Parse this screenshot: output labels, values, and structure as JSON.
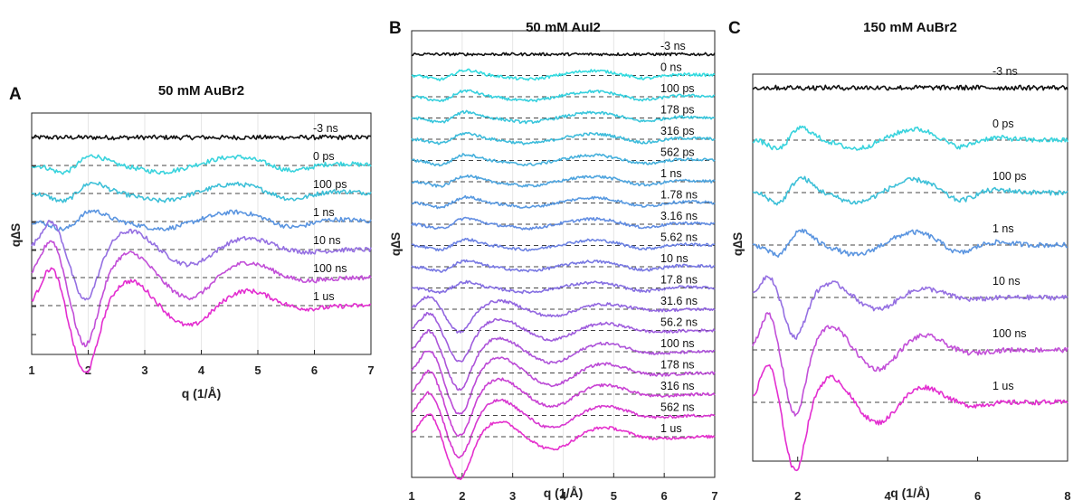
{
  "chart_data": [
    {
      "type": "line",
      "panel_label": "A",
      "title": "50 mM AuBr2",
      "xlabel": "q (1/Å)",
      "ylabel": "q∆S",
      "xlim": [
        1,
        7
      ],
      "xticks": [
        "1",
        "2",
        "3",
        "4",
        "5",
        "6",
        "7"
      ],
      "grid": true,
      "series": [
        {
          "name": "-3 ns",
          "color": "#111111",
          "profile": "flat",
          "amplitude": 0.0
        },
        {
          "name": "0 ps",
          "color": "#39d3dd",
          "profile": "early",
          "amplitude": 0.5
        },
        {
          "name": "100 ps",
          "color": "#3ec0d8",
          "profile": "early",
          "amplitude": 0.55
        },
        {
          "name": "1 ns",
          "color": "#5b95e0",
          "profile": "early",
          "amplitude": 0.55
        },
        {
          "name": "10 ns",
          "color": "#9570e2",
          "profile": "late",
          "amplitude": 0.75
        },
        {
          "name": "100 ns",
          "color": "#c24fd8",
          "profile": "late",
          "amplitude": 1.0
        },
        {
          "name": "1 us",
          "color": "#e32ed0",
          "profile": "late",
          "amplitude": 1.0
        }
      ]
    },
    {
      "type": "line",
      "panel_label": "B",
      "title": "50 mM AuI2",
      "xlabel": "q (1/Å)",
      "ylabel": "q∆S",
      "xlim": [
        1,
        7
      ],
      "xticks": [
        "1",
        "2",
        "3",
        "4",
        "5",
        "6",
        "7"
      ],
      "grid": true,
      "series": [
        {
          "name": "-3 ns",
          "color": "#111111",
          "profile": "flat",
          "amplitude": 0.0
        },
        {
          "name": "0 ns",
          "color": "#33dbe0",
          "profile": "early",
          "amplitude": 0.45
        },
        {
          "name": "100 ps",
          "color": "#36d0de",
          "profile": "early",
          "amplitude": 0.5
        },
        {
          "name": "178 ps",
          "color": "#3ac6dc",
          "profile": "early",
          "amplitude": 0.5
        },
        {
          "name": "316 ps",
          "color": "#3ebcdb",
          "profile": "early",
          "amplitude": 0.5
        },
        {
          "name": "562 ps",
          "color": "#45b0dc",
          "profile": "early",
          "amplitude": 0.5
        },
        {
          "name": "1 ns",
          "color": "#4ea4de",
          "profile": "early",
          "amplitude": 0.5
        },
        {
          "name": "1.78 ns",
          "color": "#5899e0",
          "profile": "early",
          "amplitude": 0.5
        },
        {
          "name": "3.16 ns",
          "color": "#628de2",
          "profile": "early",
          "amplitude": 0.5
        },
        {
          "name": "5.62 ns",
          "color": "#6c82e3",
          "profile": "early",
          "amplitude": 0.5
        },
        {
          "name": "10 ns",
          "color": "#7878e3",
          "profile": "early",
          "amplitude": 0.5
        },
        {
          "name": "17.8 ns",
          "color": "#856fe2",
          "profile": "early",
          "amplitude": 0.5
        },
        {
          "name": "31.6 ns",
          "color": "#9266e0",
          "profile": "late",
          "amplitude": 0.55
        },
        {
          "name": "56.2 ns",
          "color": "#9f5ddd",
          "profile": "late",
          "amplitude": 0.75
        },
        {
          "name": "100 ns",
          "color": "#ad54d9",
          "profile": "late",
          "amplitude": 0.9
        },
        {
          "name": "178 ns",
          "color": "#bb4bd6",
          "profile": "late",
          "amplitude": 1.0
        },
        {
          "name": "316 ns",
          "color": "#c942d3",
          "profile": "late",
          "amplitude": 1.0
        },
        {
          "name": "562 ns",
          "color": "#d739d0",
          "profile": "late",
          "amplitude": 1.0
        },
        {
          "name": "1 us",
          "color": "#e530cd",
          "profile": "late",
          "amplitude": 1.0
        }
      ]
    },
    {
      "type": "line",
      "panel_label": "C",
      "title": "150 mM AuBr2",
      "xlabel": "q (1/Å)",
      "ylabel": "q∆S",
      "xlim": [
        1,
        8
      ],
      "xticks": [
        "2",
        "4",
        "6",
        "8"
      ],
      "grid": false,
      "series": [
        {
          "name": "-3 ns",
          "color": "#111111",
          "profile": "flat",
          "amplitude": 0.0
        },
        {
          "name": "0 ps",
          "color": "#39d3dd",
          "profile": "early",
          "amplitude": 0.6
        },
        {
          "name": "100 ps",
          "color": "#3ec0d8",
          "profile": "early",
          "amplitude": 0.7
        },
        {
          "name": "1 ns",
          "color": "#5b95e0",
          "profile": "early",
          "amplitude": 0.7
        },
        {
          "name": "10 ns",
          "color": "#9570e2",
          "profile": "late",
          "amplitude": 0.55
        },
        {
          "name": "100 ns",
          "color": "#c24fd8",
          "profile": "late",
          "amplitude": 0.9
        },
        {
          "name": "1 us",
          "color": "#e32ed0",
          "profile": "late",
          "amplitude": 0.95
        }
      ]
    }
  ]
}
